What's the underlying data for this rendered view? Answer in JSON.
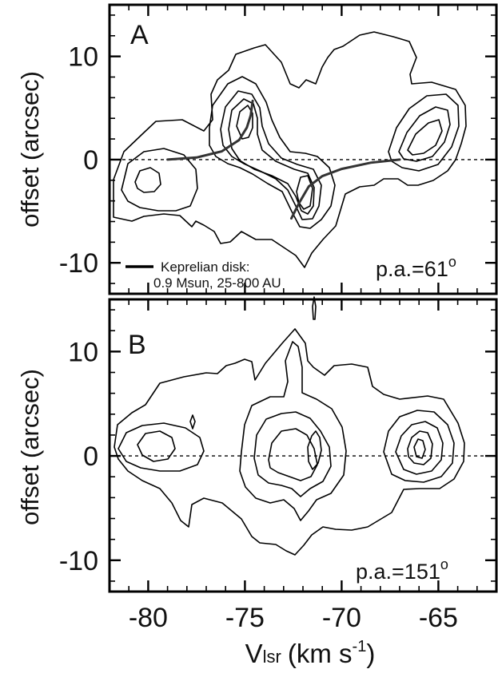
{
  "chart_data": [
    {
      "type": "contour",
      "panel_label": "A",
      "position_angle_text": "p.a.=61",
      "position_angle_sup": "o",
      "ylabel": "offset (arcsec)",
      "xlim": [
        -82,
        -62
      ],
      "ylim": [
        -13,
        15
      ],
      "x_ticks": [
        -80,
        -75,
        -70,
        -65
      ],
      "y_ticks": [
        10,
        0,
        -10
      ],
      "y_tick_labels": [
        "10",
        "0",
        "-10"
      ],
      "zero_line": "dashed",
      "legend": {
        "line1": "Keprelian disk:",
        "line2": "0.9 Msun, 25-800 AU",
        "placement": "bottom-left"
      },
      "keplerian_curves": [
        {
          "x": [
            -79,
            -77.5,
            -76.2,
            -75.3,
            -74.9,
            -74.7,
            -74.6
          ],
          "y": [
            0,
            0.2,
            0.8,
            1.9,
            3.1,
            4.3,
            5.7
          ]
        },
        {
          "x": [
            -72.6,
            -72.2,
            -71.7,
            -71,
            -70,
            -68.5,
            -67
          ],
          "y": [
            -5.7,
            -4.2,
            -2.6,
            -1.6,
            -0.9,
            -0.3,
            0
          ]
        }
      ],
      "peaks": [
        {
          "x": -79.2,
          "y": -2.1
        },
        {
          "x": -75.0,
          "y": 3.6
        },
        {
          "x": -72.0,
          "y": -2.6
        },
        {
          "x": -66.8,
          "y": 1.5
        }
      ]
    },
    {
      "type": "contour",
      "panel_label": "B",
      "position_angle_text": "p.a.=151",
      "position_angle_sup": "o",
      "ylabel": "offset (arcsec)",
      "xlabel_main": "V",
      "xlabel_sub": "lsr",
      "xlabel_unit": "(km s",
      "xlabel_exp": "-1",
      "xlabel_close": ")",
      "xlim": [
        -82,
        -62
      ],
      "ylim": [
        -13,
        15
      ],
      "x_ticks": [
        -80,
        -75,
        -70,
        -65
      ],
      "x_tick_labels": [
        "-80",
        "-75",
        "-70",
        "-65"
      ],
      "y_ticks": [
        10,
        0,
        -10
      ],
      "y_tick_labels": [
        "10",
        "0",
        "-10"
      ],
      "zero_line": "dashed",
      "peaks": [
        {
          "x": -79.3,
          "y": 0.4
        },
        {
          "x": -72.0,
          "y": 0.5
        },
        {
          "x": -66.8,
          "y": 0.1
        },
        {
          "x": -73.1,
          "y": 7.5
        }
      ]
    }
  ]
}
